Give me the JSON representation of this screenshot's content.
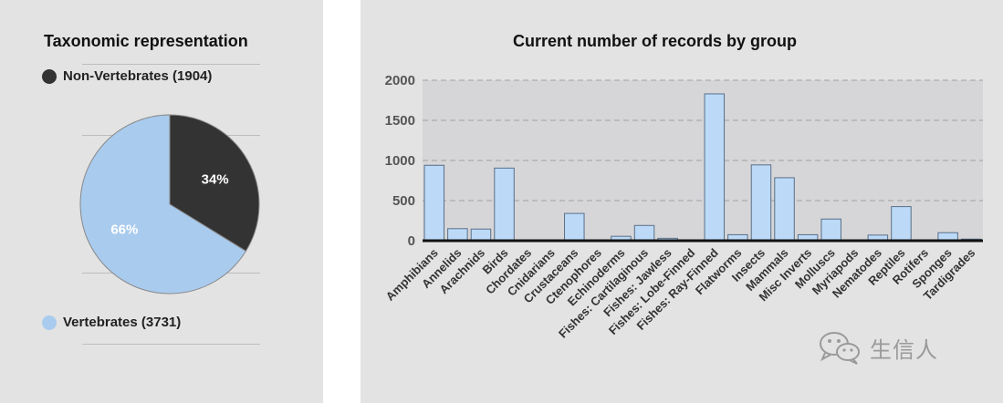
{
  "pie_panel": {
    "title": "Taxonomic representation",
    "legend_non_vertebrates": "Non-Vertebrates (1904)",
    "legend_vertebrates": "Vertebrates (3731)",
    "label_non_vertebrates_pct": "34%",
    "label_vertebrates_pct": "66%",
    "colors": {
      "non_vertebrates": "#333333",
      "vertebrates": "#a9cbee"
    }
  },
  "watermark": {
    "text": "生信人",
    "icon": "wechat-icon"
  },
  "chart_data": [
    {
      "type": "pie",
      "title": "Taxonomic representation",
      "labels": [
        "Non-Vertebrates",
        "Vertebrates"
      ],
      "values": [
        1904,
        3731
      ],
      "percent_labels": [
        "34%",
        "66%"
      ]
    },
    {
      "type": "bar",
      "title": "Current number of records by group",
      "categories": [
        "Amphibians",
        "Annelids",
        "Arachnids",
        "Birds",
        "Chordates",
        "Cnidarians",
        "Crustaceans",
        "Ctenophores",
        "Echinoderms",
        "Fishes: Cartilaginous",
        "Fishes: Jawless",
        "Fishes: Lobe-Finned",
        "Fishes: Ray-Finned",
        "Flatworms",
        "Insects",
        "Mammals",
        "Misc Inverts",
        "Molluscs",
        "Myriapods",
        "Nematodes",
        "Reptiles",
        "Rotifers",
        "Sponges",
        "Tardigrades"
      ],
      "values": [
        940,
        150,
        145,
        905,
        0,
        0,
        340,
        0,
        55,
        190,
        30,
        0,
        1830,
        75,
        945,
        785,
        75,
        270,
        0,
        70,
        425,
        0,
        100,
        20
      ],
      "y_ticks": [
        "0",
        "500",
        "1000",
        "1500",
        "2000"
      ],
      "ylim": [
        0,
        2000
      ],
      "grid": true,
      "bar_color": "#bcdaf8"
    }
  ]
}
